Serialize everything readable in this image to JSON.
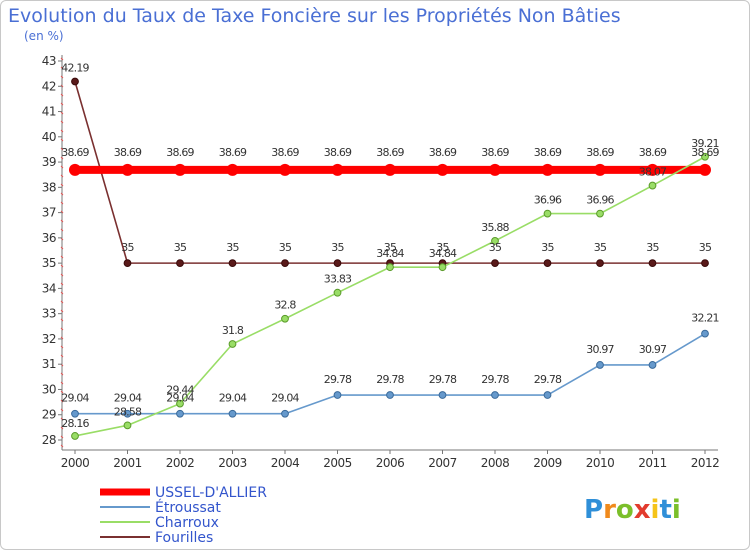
{
  "chart_data": {
    "type": "line",
    "title": "Evolution du Taux de Taxe Foncière sur les Propriétés Non Bâties",
    "subtitle": "(en %)",
    "x": [
      "2000",
      "2001",
      "2002",
      "2003",
      "2004",
      "2005",
      "2006",
      "2007",
      "2008",
      "2009",
      "2010",
      "2011",
      "2012"
    ],
    "ylim": [
      28,
      43
    ],
    "yticks": [
      28,
      29,
      30,
      31,
      32,
      33,
      34,
      35,
      36,
      37,
      38,
      39,
      40,
      41,
      42,
      43
    ],
    "grid": false,
    "series": [
      {
        "name": "USSEL-D'ALLIER",
        "color": "#ff0000",
        "values": [
          38.69,
          38.69,
          38.69,
          38.69,
          38.69,
          38.69,
          38.69,
          38.69,
          38.69,
          38.69,
          38.69,
          38.69,
          38.69
        ],
        "labels": [
          "38.69",
          "38.69",
          "38.69",
          "38.69",
          "38.69",
          "38.69",
          "38.69",
          "38.69",
          "38.69",
          "38.69",
          "38.69",
          "38.69",
          "38.69"
        ]
      },
      {
        "name": "Étroussat",
        "color": "#6699cc",
        "values": [
          29.04,
          29.04,
          29.04,
          29.04,
          29.04,
          29.78,
          29.78,
          29.78,
          29.78,
          29.78,
          30.97,
          30.97,
          32.21
        ],
        "labels": [
          "29.04",
          "29.04",
          "29.04",
          "29.04",
          "29.04",
          "29.78",
          "29.78",
          "29.78",
          "29.78",
          "29.78",
          "30.97",
          "30.97",
          "32.21"
        ]
      },
      {
        "name": "Charroux",
        "color": "#99dd66",
        "values": [
          28.16,
          28.58,
          29.44,
          31.8,
          32.8,
          33.83,
          34.84,
          34.84,
          35.88,
          36.96,
          36.96,
          38.07,
          39.21
        ],
        "labels": [
          "28.16",
          "28.58",
          "29.44",
          "31.8",
          "32.8",
          "33.83",
          "34.84",
          "34.84",
          "35.88",
          "36.96",
          "36.96",
          "38.07",
          "39.21"
        ]
      },
      {
        "name": "Fourilles",
        "color": "#7a3030",
        "values": [
          42.19,
          35,
          35,
          35,
          35,
          35,
          35,
          35,
          35,
          35,
          35,
          35,
          35
        ],
        "labels": [
          "42.19",
          "35",
          "35",
          "35",
          "35",
          "35",
          "35",
          "35",
          "35",
          "35",
          "35",
          "35",
          "35"
        ]
      }
    ]
  },
  "brand": {
    "letters": [
      "P",
      "r",
      "o",
      "x",
      "i",
      "t",
      "i"
    ],
    "colors": [
      "#2f8fd8",
      "#f08a1c",
      "#7bbf2a",
      "#e23b2e",
      "#f5c419",
      "#2f8fd8",
      "#7bbf2a"
    ]
  }
}
